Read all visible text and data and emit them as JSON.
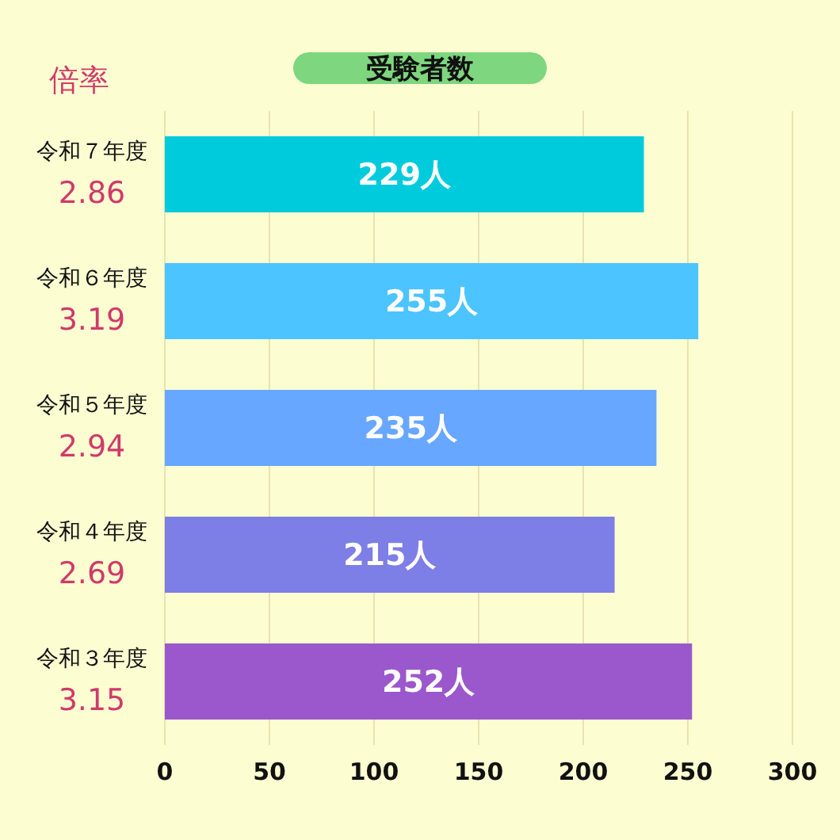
{
  "chart_data": {
    "type": "bar",
    "orientation": "horizontal",
    "title": "受験者数",
    "categories": [
      "令和７年度",
      "令和６年度",
      "令和５年度",
      "令和４年度",
      "令和３年度"
    ],
    "values": [
      229,
      255,
      235,
      215,
      252
    ],
    "colors": [
      "#00cbdc",
      "#4cc4ff",
      "#67a7ff",
      "#7d7ee6",
      "#9b57cc"
    ],
    "value_labels": [
      "229人",
      "255人",
      "235人",
      "215人",
      "252人"
    ],
    "xlim": [
      0,
      300
    ],
    "xticks": [
      0,
      50,
      100,
      150,
      200,
      250,
      300
    ],
    "grid": "x",
    "annotations": [
      "倍率",
      "2.86",
      "3.19",
      "2.94",
      "2.69",
      "3.15"
    ]
  }
}
